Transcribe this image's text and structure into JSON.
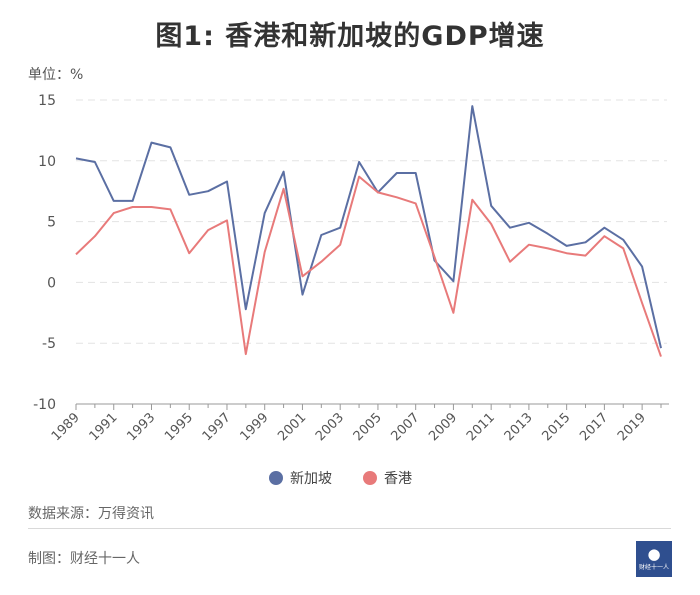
{
  "header": {
    "title": "图1: 香港和新加坡的GDP增速",
    "unit": "单位：%"
  },
  "footer": {
    "source": "数据来源：万得资讯",
    "credit": "制图：财经十一人",
    "logo_text": "财经十一人"
  },
  "colors": {
    "singapore": "#5b6fa3",
    "hongkong": "#e87a7a",
    "grid": "#e3e3e3",
    "axis": "#999999"
  },
  "chart_data": {
    "type": "line",
    "title": "图1: 香港和新加坡的GDP增速",
    "ylabel": "单位：%",
    "xlabel": "",
    "ylim": [
      -10,
      15
    ],
    "yticks": [
      15,
      10,
      5,
      0,
      -5,
      -10
    ],
    "x": [
      1989,
      1990,
      1991,
      1992,
      1993,
      1994,
      1995,
      1996,
      1997,
      1998,
      1999,
      2000,
      2001,
      2002,
      2003,
      2004,
      2005,
      2006,
      2007,
      2008,
      2009,
      2010,
      2011,
      2012,
      2013,
      2014,
      2015,
      2016,
      2017,
      2018,
      2019,
      2020
    ],
    "xtick_labels": [
      "1989",
      "1991",
      "1993",
      "1995",
      "1997",
      "1999",
      "2001",
      "2003",
      "2005",
      "2007",
      "2009",
      "2011",
      "2013",
      "2015",
      "2017",
      "2019"
    ],
    "series": [
      {
        "name": "新加坡",
        "color": "#5b6fa3",
        "values": [
          10.2,
          9.9,
          6.7,
          6.7,
          11.5,
          11.1,
          7.2,
          7.5,
          8.3,
          -2.2,
          5.7,
          9.1,
          -1.0,
          3.9,
          4.5,
          9.9,
          7.4,
          9.0,
          9.0,
          1.8,
          0.1,
          14.5,
          6.3,
          4.5,
          4.9,
          4.0,
          3.0,
          3.3,
          4.5,
          3.5,
          1.3,
          -5.4
        ]
      },
      {
        "name": "香港",
        "color": "#e87a7a",
        "values": [
          2.3,
          3.8,
          5.7,
          6.2,
          6.2,
          6.0,
          2.4,
          4.3,
          5.1,
          -5.9,
          2.5,
          7.7,
          0.5,
          1.7,
          3.1,
          8.7,
          7.4,
          7.0,
          6.5,
          2.1,
          -2.5,
          6.8,
          4.8,
          1.7,
          3.1,
          2.8,
          2.4,
          2.2,
          3.8,
          2.8,
          -1.7,
          -6.1
        ]
      }
    ],
    "legend": "bottom-center"
  }
}
